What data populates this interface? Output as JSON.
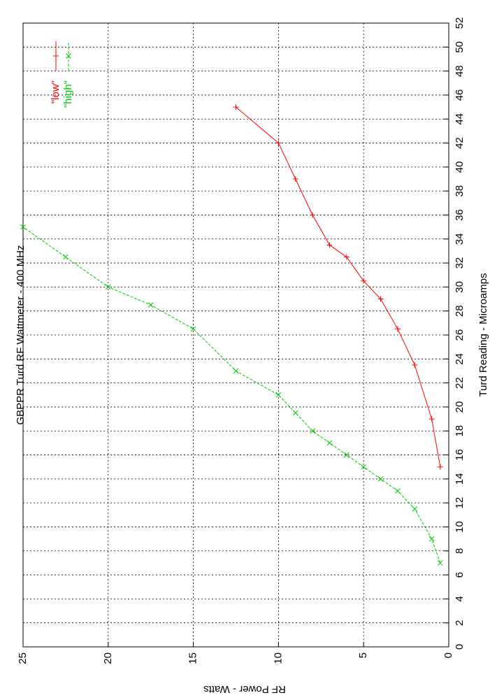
{
  "chart_data": {
    "type": "line",
    "title": "GBPPR Turd RF Wattmeter  -  400 MHz",
    "x_label": "Turd Reading  -  Microamps",
    "y_label": "RF Power  -  Watts",
    "xlim": [
      0,
      52
    ],
    "xticks": [
      0,
      2,
      4,
      6,
      8,
      10,
      12,
      14,
      16,
      18,
      20,
      22,
      24,
      26,
      28,
      30,
      32,
      34,
      36,
      38,
      40,
      42,
      44,
      46,
      48,
      50,
      52
    ],
    "ylim": [
      0,
      25
    ],
    "yticks": [
      0,
      5,
      10,
      15,
      20,
      25
    ],
    "grid": true,
    "legend": "top-right",
    "series": [
      {
        "name": "\"low\"",
        "color": "#ff0000",
        "marker": "+",
        "x": [
          15,
          19,
          23.5,
          26.5,
          29,
          30.5,
          32.5,
          33.5,
          36,
          39,
          42,
          45
        ],
        "values": [
          0.5,
          1,
          2,
          3,
          4,
          5,
          6,
          7,
          8,
          9,
          10,
          12.5
        ]
      },
      {
        "name": "\"high\"",
        "color": "#00cc00",
        "marker": "x",
        "x": [
          7,
          9,
          11.5,
          13,
          14,
          15,
          16,
          17,
          18,
          19.5,
          21,
          23,
          26.5,
          28.5,
          30,
          32.5,
          35
        ],
        "values": [
          0.5,
          1,
          2,
          3,
          4,
          5,
          6,
          7,
          8,
          9,
          10,
          12.5,
          15,
          17.5,
          20,
          22.5,
          25
        ]
      }
    ]
  }
}
